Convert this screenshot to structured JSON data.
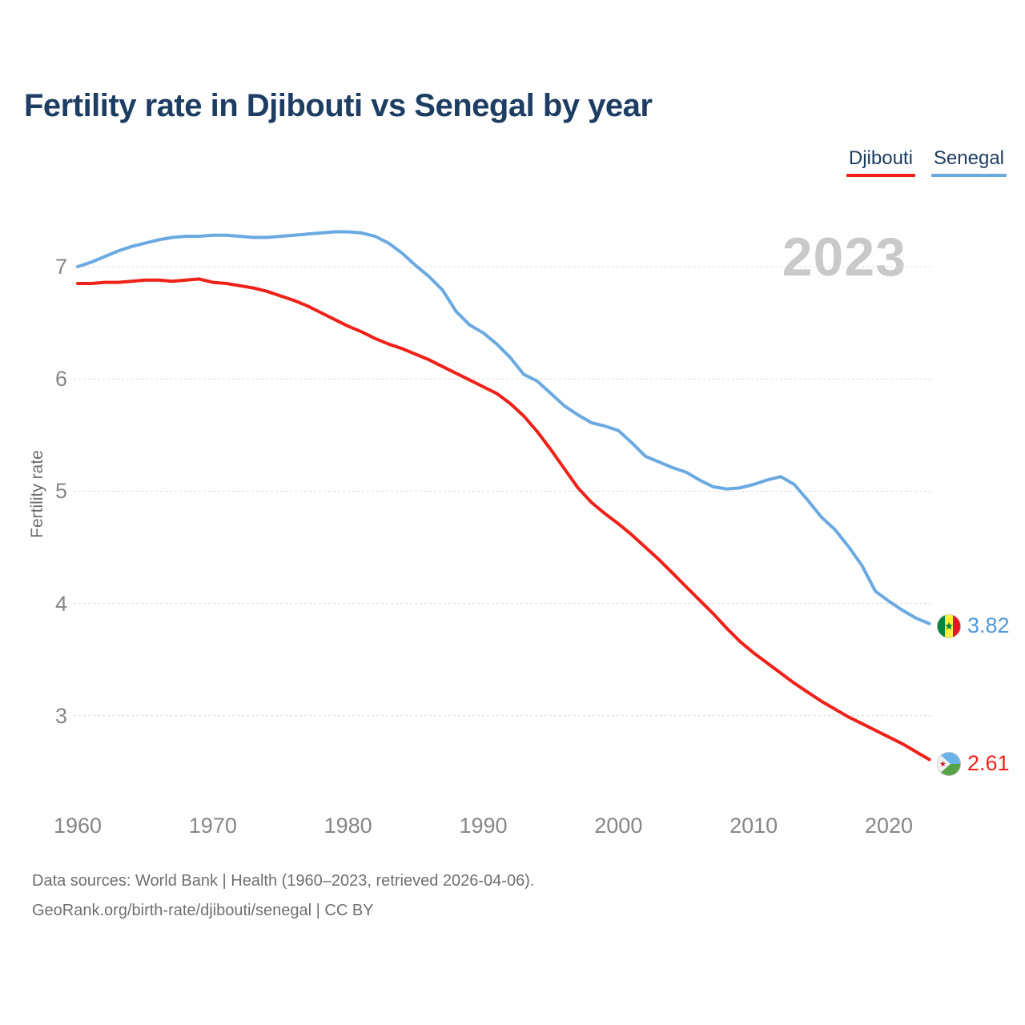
{
  "title": "Fertility rate in Djibouti vs Senegal by year",
  "watermark": "2023",
  "legend": {
    "items": [
      {
        "label": "Djibouti",
        "color": "#ef2118"
      },
      {
        "label": "Senegal",
        "color": "#6aaae1"
      }
    ]
  },
  "y_axis": {
    "title": "Fertility rate"
  },
  "end_labels": {
    "senegal": {
      "value": "3.82",
      "flag": "senegal-flag",
      "text_color": "#4e98d8"
    },
    "djibouti": {
      "value": "2.61",
      "flag": "djibouti-flag",
      "text_color": "#ef2118"
    }
  },
  "footer": {
    "line1": "Data sources: World Bank | Health (1960–2023, retrieved 2026-04-06).",
    "line2": "GeoRank.org/birth-rate/djibouti/senegal | CC BY"
  },
  "colors": {
    "title_navy": "#1d3d63",
    "red_line": "#ef2118",
    "blue_line": "#6aaae1",
    "gridline": "#dcdcdc",
    "tick_text": "#868686",
    "watermark": "#c9c9c9"
  },
  "chart_data": {
    "type": "line",
    "title": "Fertility rate in Djibouti vs Senegal by year",
    "xlabel": "",
    "ylabel": "Fertility rate",
    "x_start": 1960,
    "x_end": 2023,
    "xticks": [
      1960,
      1970,
      1980,
      1990,
      2000,
      2010,
      2020
    ],
    "yticks": [
      7,
      6,
      5,
      4,
      3
    ],
    "ylim": [
      2.45,
      7.45
    ],
    "grid": true,
    "legend_position": "top-right",
    "watermark_year": "2023",
    "series": [
      {
        "name": "Senegal",
        "color": "#6aaae1",
        "end_value": 3.82,
        "values": [
          7.0,
          7.04,
          7.09,
          7.14,
          7.18,
          7.21,
          7.24,
          7.26,
          7.27,
          7.27,
          7.28,
          7.28,
          7.27,
          7.26,
          7.26,
          7.27,
          7.28,
          7.29,
          7.3,
          7.31,
          7.31,
          7.3,
          7.27,
          7.21,
          7.12,
          7.01,
          6.91,
          6.79,
          6.6,
          6.48,
          6.41,
          6.31,
          6.19,
          6.04,
          5.98,
          5.87,
          5.76,
          5.68,
          5.61,
          5.58,
          5.54,
          5.43,
          5.31,
          5.26,
          5.21,
          5.17,
          5.1,
          5.04,
          5.02,
          5.03,
          5.06,
          5.1,
          5.13,
          5.06,
          4.92,
          4.77,
          4.66,
          4.51,
          4.34,
          4.11,
          4.02,
          3.94,
          3.87,
          3.82
        ]
      },
      {
        "name": "Djibouti",
        "color": "#ef2118",
        "end_value": 2.61,
        "values": [
          6.85,
          6.85,
          6.86,
          6.86,
          6.87,
          6.88,
          6.88,
          6.87,
          6.88,
          6.89,
          6.86,
          6.85,
          6.83,
          6.81,
          6.78,
          6.74,
          6.7,
          6.65,
          6.59,
          6.53,
          6.47,
          6.42,
          6.36,
          6.31,
          6.27,
          6.22,
          6.17,
          6.11,
          6.05,
          5.99,
          5.93,
          5.87,
          5.78,
          5.67,
          5.53,
          5.37,
          5.2,
          5.03,
          4.9,
          4.8,
          4.71,
          4.61,
          4.5,
          4.39,
          4.27,
          4.15,
          4.03,
          3.91,
          3.78,
          3.66,
          3.56,
          3.47,
          3.38,
          3.29,
          3.21,
          3.13,
          3.06,
          2.99,
          2.93,
          2.87,
          2.81,
          2.75,
          2.68,
          2.61
        ]
      }
    ]
  }
}
